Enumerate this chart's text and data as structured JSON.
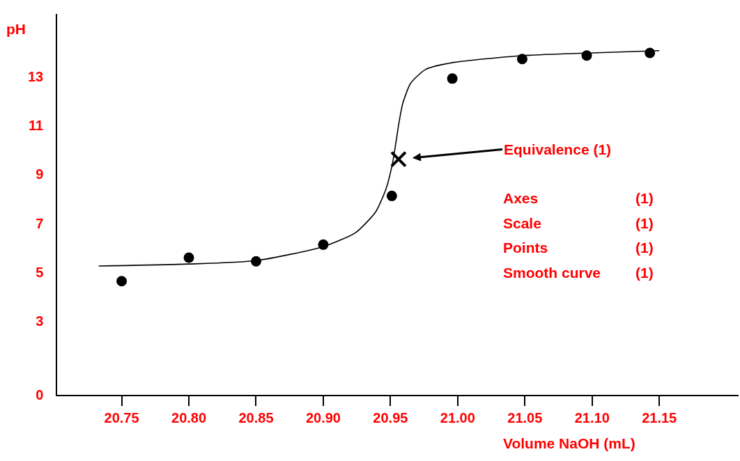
{
  "chart_data": {
    "type": "scatter",
    "xlabel": "Volume NaOH (mL)",
    "ylabel": "pH",
    "xlim": [
      20.702,
      21.209
    ],
    "ylim": [
      0,
      15.55
    ],
    "xticks": [
      {
        "value": 20.75,
        "label": "20.75"
      },
      {
        "value": 20.8,
        "label": "20.80"
      },
      {
        "value": 20.85,
        "label": "20.85"
      },
      {
        "value": 20.9,
        "label": "20.90"
      },
      {
        "value": 20.95,
        "label": "20.95"
      },
      {
        "value": 21.0,
        "label": "21.00"
      },
      {
        "value": 21.05,
        "label": "21.05"
      },
      {
        "value": 21.1,
        "label": "21.10"
      },
      {
        "value": 21.15,
        "label": "21.15"
      }
    ],
    "yticks": [
      0,
      3,
      5,
      7,
      9,
      11,
      13
    ],
    "legend": false,
    "series": [
      {
        "marker": "circle",
        "color": "#000000",
        "x": [
          20.75,
          20.8,
          20.85,
          20.9,
          20.951,
          20.996,
          21.048,
          21.096,
          21.143
        ],
        "values": [
          4.64,
          5.6,
          5.45,
          6.13,
          8.12,
          12.91,
          13.71,
          13.85,
          13.96
        ]
      },
      {
        "type": "line",
        "marker": "none",
        "line_style": "solid",
        "color": "#000000",
        "x": [
          20.733,
          20.8,
          20.85,
          20.9,
          20.924,
          20.939,
          20.947,
          20.952,
          20.956,
          20.959,
          20.965,
          20.976,
          20.997,
          21.049,
          21.1,
          21.15
        ],
        "values": [
          5.26,
          5.34,
          5.48,
          6.05,
          6.62,
          7.47,
          8.46,
          9.6,
          11.0,
          11.87,
          12.72,
          13.28,
          13.57,
          13.85,
          13.96,
          14.05
        ]
      },
      {
        "marker": "cross",
        "color": "#000000",
        "x": [
          20.956
        ],
        "values": [
          9.62
        ]
      }
    ],
    "annotations": [
      {
        "text": "Equivalence (1)",
        "x": 20.956,
        "y": 9.62
      },
      "Axes (1)",
      "Scale (1)",
      "Points (1)",
      "Smooth curve (1)"
    ]
  }
}
